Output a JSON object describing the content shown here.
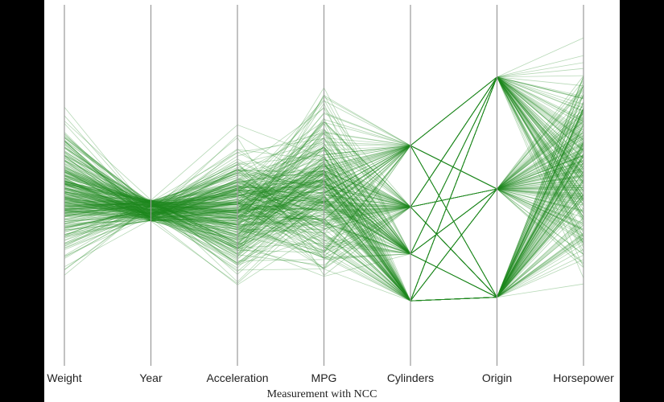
{
  "chart_data": {
    "type": "parallel-coordinates",
    "title": "",
    "xlabel": "Measurement with NCC",
    "ylabel": "",
    "axes": [
      "Weight",
      "Year",
      "Acceleration",
      "MPG",
      "Cylinders",
      "Origin",
      "Horsepower"
    ],
    "ylim": [
      0,
      1
    ],
    "line_color": "#1f8a1f",
    "axis_color": "#9a9a9a",
    "grid": false,
    "n_lines": 300,
    "value_ranges": {
      "Weight": [
        0.18,
        0.78
      ],
      "Year": [
        0.4,
        0.46
      ],
      "Acceleration": [
        0.17,
        0.71
      ],
      "MPG": [
        0.08,
        0.88
      ],
      "Cylinders": [
        0.18,
        0.61
      ],
      "Origin": [
        0.19,
        0.8
      ],
      "Horsepower": [
        0.12,
        0.99
      ]
    },
    "discrete_levels": {
      "Cylinders": [
        0.18,
        0.31,
        0.44,
        0.61
      ],
      "Origin": [
        0.19,
        0.49,
        0.8
      ]
    }
  }
}
